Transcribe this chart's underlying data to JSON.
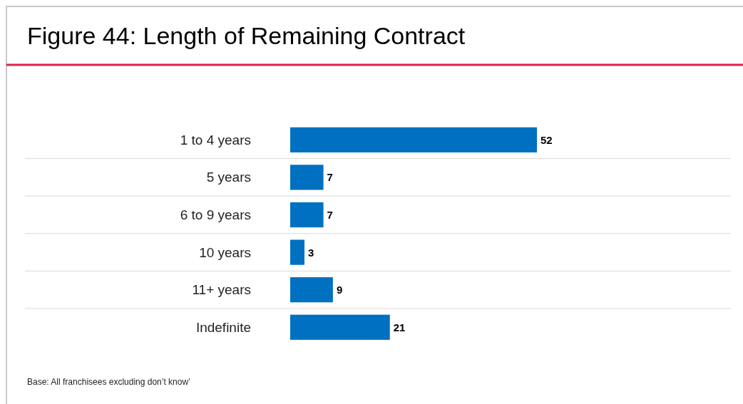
{
  "chart_data": {
    "type": "bar",
    "orientation": "horizontal",
    "title": "Figure 44: Length of Remaining Contract",
    "categories": [
      "1 to 4 years",
      "5 years",
      "6 to 9 years",
      "10 years",
      "11+ years",
      "Indefinite"
    ],
    "values": [
      52,
      7,
      7,
      3,
      9,
      21
    ],
    "color": "#0070c0",
    "data_labels": true,
    "annotations": [
      "Base: All franchisees excluding don’t know’"
    ]
  }
}
